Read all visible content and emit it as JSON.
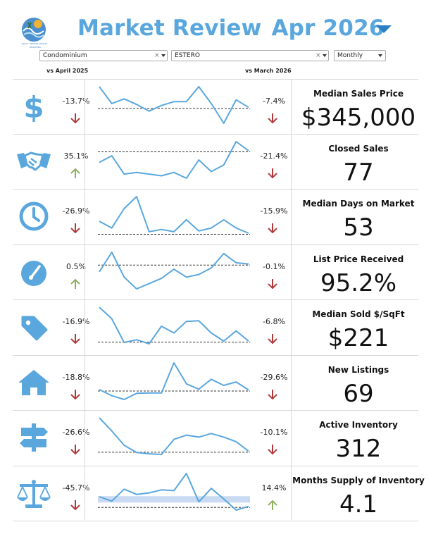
{
  "header": {
    "title": "Market Review",
    "month": "Apr 2026",
    "logo_line1": "ROYAL SHORES REALTY",
    "logo_line2": "REALTORS"
  },
  "filters": {
    "property_type": "Condominium",
    "location": "ESTERO",
    "period": "Monthly"
  },
  "columns": {
    "yoy": "vs April 2025",
    "mom": "vs March 2026"
  },
  "colors": {
    "accent": "#5aa7de",
    "spark": "#5aa7de",
    "down": "#b0393c",
    "up": "#8fb061",
    "band": "#c9daf2"
  },
  "metrics": [
    {
      "icon": "dollar-icon",
      "label": "Median Sales Price",
      "value": "$345,000",
      "yoy": "-13.7%",
      "yoy_dir": "down",
      "mom": "-7.4%",
      "mom_dir": "down",
      "series": [
        60,
        42,
        47,
        41,
        34,
        40,
        44,
        44,
        60,
        42,
        21,
        46,
        38
      ]
    },
    {
      "icon": "handshake-icon",
      "label": "Closed Sales",
      "value": "77",
      "yoy": "35.1%",
      "yoy_dir": "up",
      "mom": "-21.4%",
      "mom_dir": "down",
      "series": [
        59,
        67,
        45,
        47,
        45,
        43,
        47,
        40,
        62,
        48,
        56,
        84,
        73
      ]
    },
    {
      "icon": "clock-icon",
      "label": "Median Days on Market",
      "value": "53",
      "yoy": "-26.9%",
      "yoy_dir": "down",
      "mom": "-15.9%",
      "mom_dir": "down",
      "series": [
        49,
        40,
        66,
        82,
        35,
        38,
        35,
        51,
        36,
        40,
        51,
        40,
        33
      ]
    },
    {
      "icon": "gauge-icon",
      "label": "List Price Received",
      "value": "95.2%",
      "yoy": "0.5%",
      "yoy_dir": "up",
      "mom": "-0.1%",
      "mom_dir": "down",
      "series": [
        30,
        45,
        26,
        17,
        21,
        25,
        32,
        26,
        28,
        33,
        44,
        37,
        36
      ]
    },
    {
      "icon": "tag-icon",
      "label": "Median Sold $/SqFt",
      "value": "$221",
      "yoy": "-16.9%",
      "yoy_dir": "down",
      "mom": "-6.8%",
      "mom_dir": "down",
      "series": [
        262,
        245,
        210,
        214,
        208,
        234,
        224,
        241,
        242,
        224,
        212,
        227,
        212
      ]
    },
    {
      "icon": "house-icon",
      "label": "New Listings",
      "value": "69",
      "yoy": "-18.8%",
      "yoy_dir": "down",
      "mom": "-29.6%",
      "mom_dir": "down",
      "series": [
        93,
        77,
        67,
        83,
        84,
        84,
        163,
        108,
        94,
        120,
        104,
        113,
        92
      ]
    },
    {
      "icon": "signpost-icon",
      "label": "Active Inventory",
      "value": "312",
      "yoy": "-26.6%",
      "yoy_dir": "down",
      "mom": "-10.1%",
      "mom_dir": "down",
      "series": [
        436,
        396,
        352,
        330,
        326,
        324,
        370,
        383,
        377,
        388,
        377,
        363,
        334
      ]
    },
    {
      "icon": "scale-icon",
      "label": "Months Supply of Inventory",
      "value": "4.1",
      "yoy": "-45.7%",
      "yoy_dir": "down",
      "mom": "14.4%",
      "mom_dir": "up",
      "series": [
        5.4,
        4.8,
        6.4,
        5.7,
        5.9,
        6.3,
        6.2,
        8.5,
        4.7,
        6.5,
        5.1,
        3.6,
        4.1
      ]
    }
  ]
}
